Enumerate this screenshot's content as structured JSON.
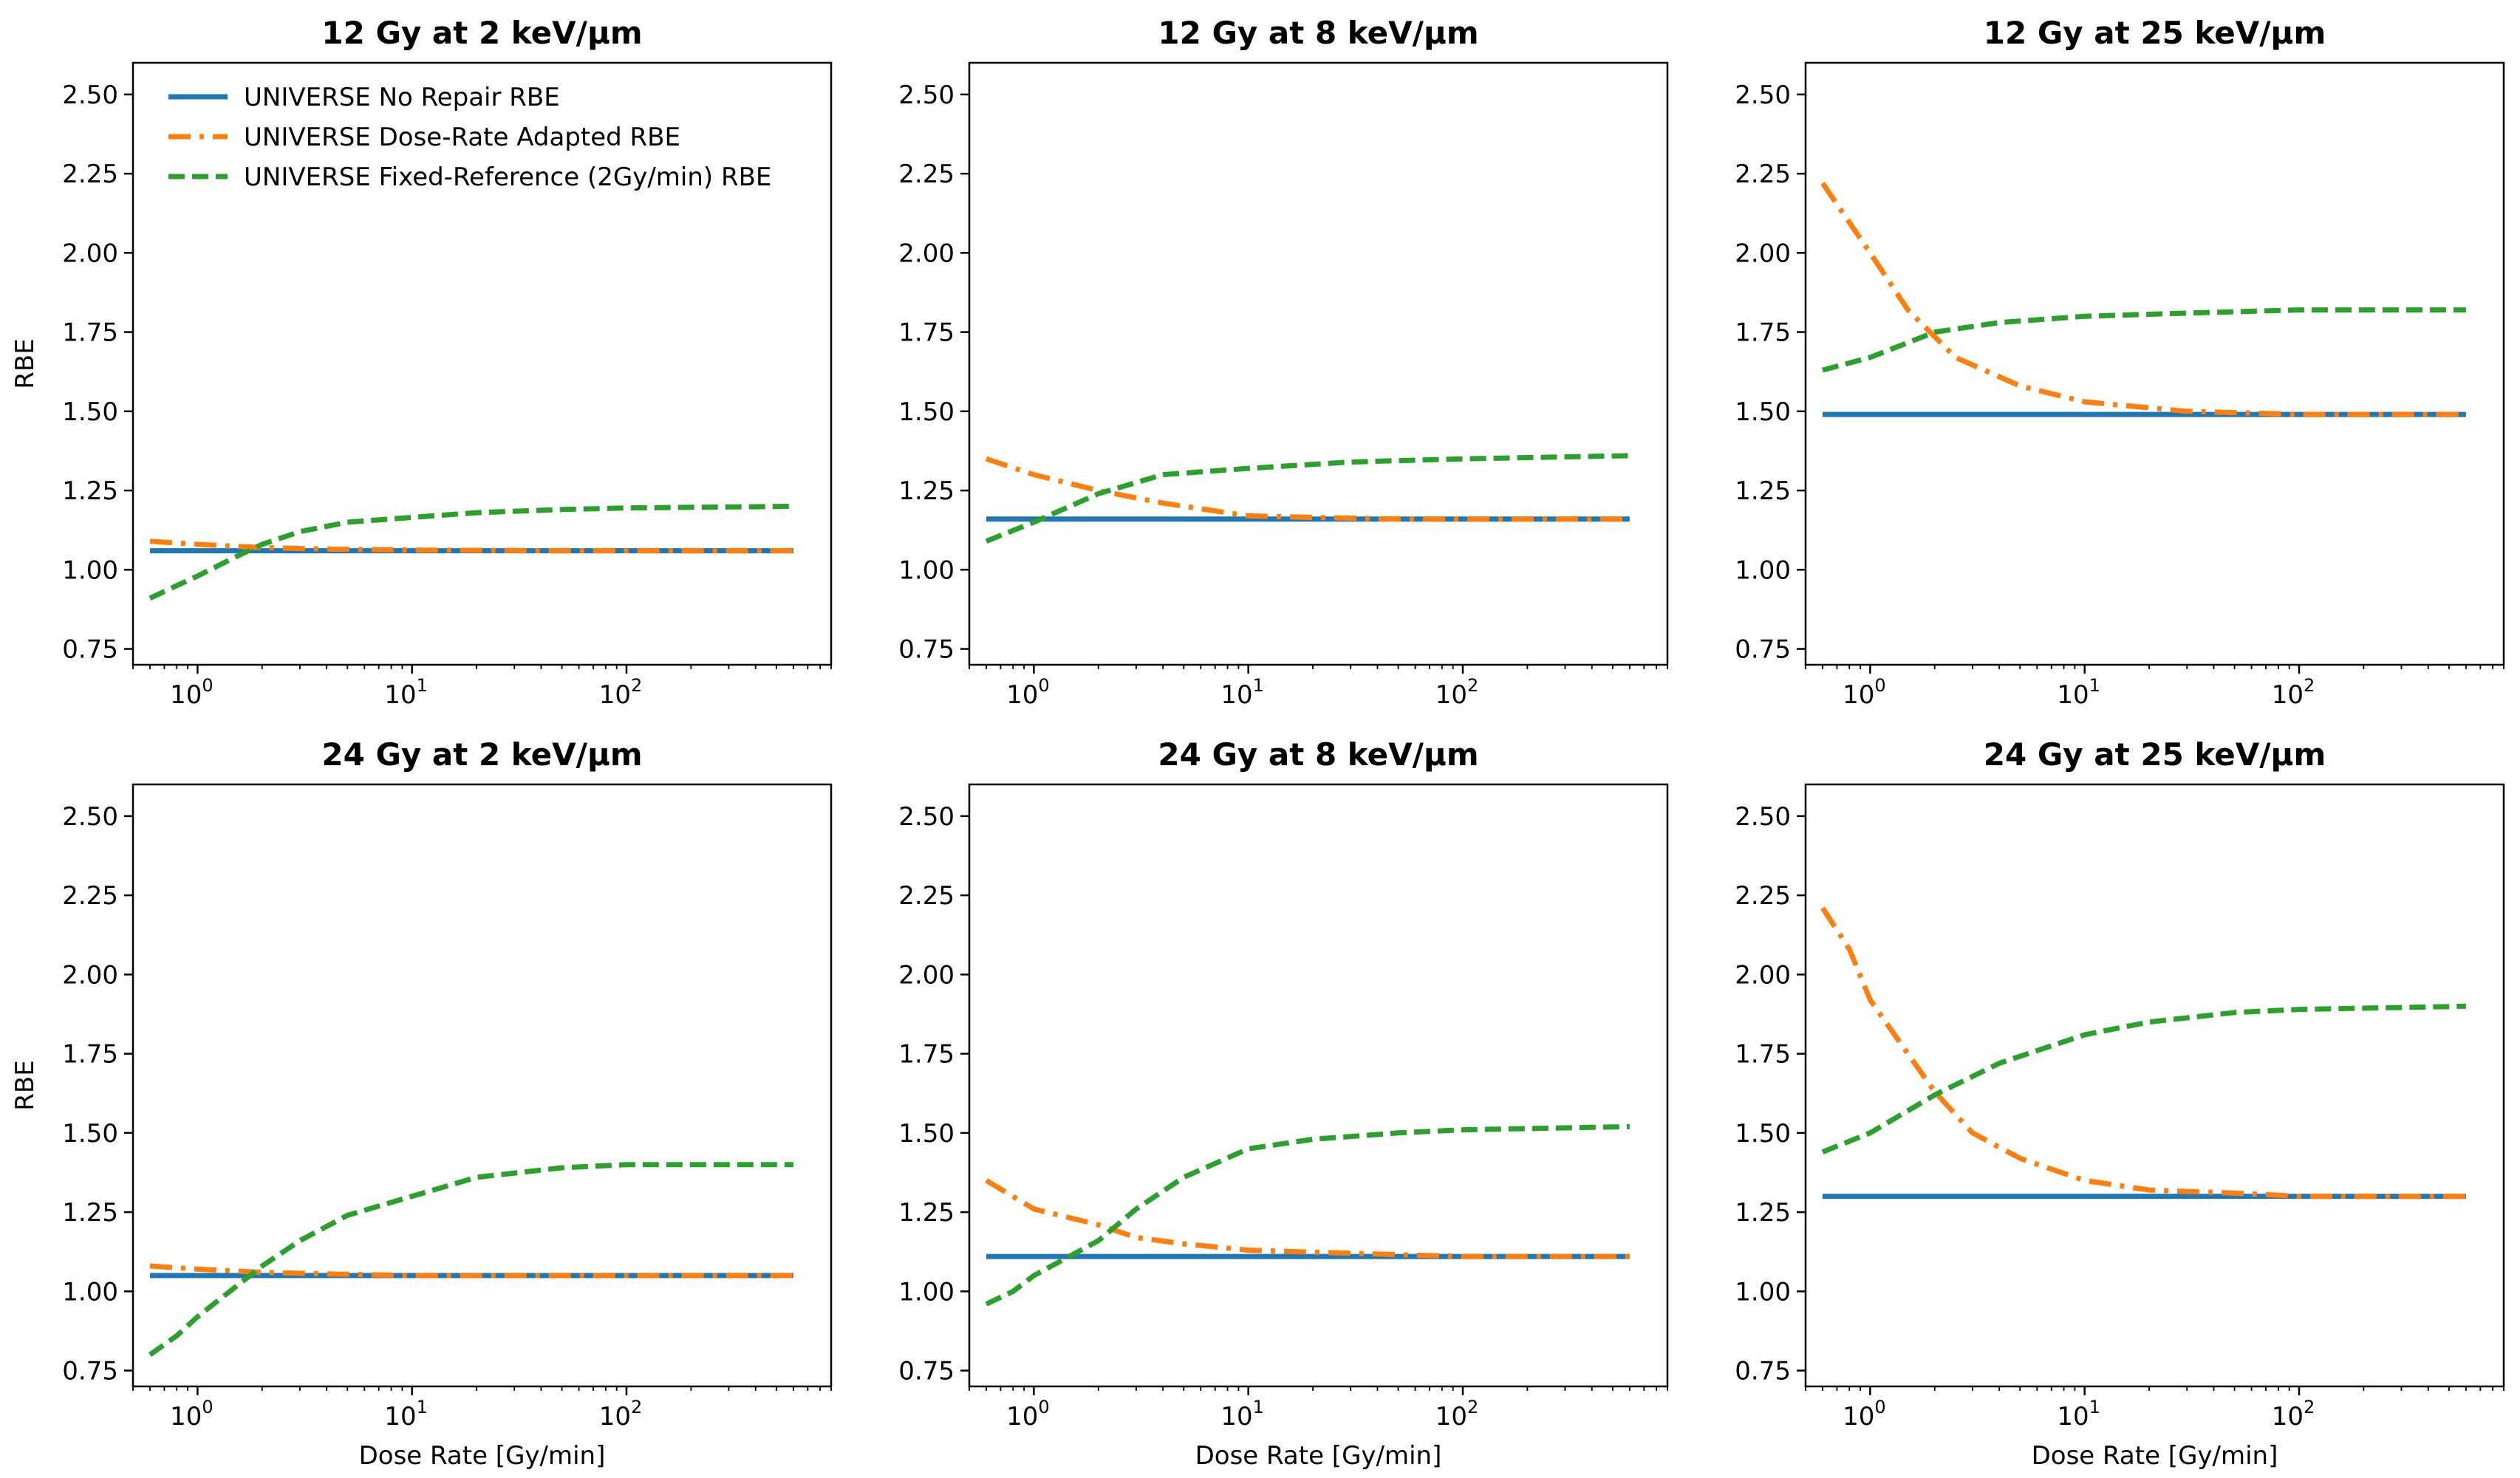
{
  "chart_data": [
    {
      "type": "line",
      "title": "12 Gy at 2 keV/μm",
      "xlabel": "",
      "ylabel": "RBE",
      "xscale": "log",
      "xlim": [
        0.5,
        900
      ],
      "ylim": [
        0.7,
        2.6
      ],
      "xticks": [
        {
          "value": 1,
          "base": "10",
          "exp": "0"
        },
        {
          "value": 10,
          "base": "10",
          "exp": "1"
        },
        {
          "value": 100,
          "base": "10",
          "exp": "2"
        }
      ],
      "yticks": [
        "0.75",
        "1.00",
        "1.25",
        "1.50",
        "1.75",
        "2.00",
        "2.25",
        "2.50"
      ],
      "legend": "top-left",
      "series": [
        {
          "name": "UNIVERSE No Repair RBE",
          "color": "#1f77b4",
          "dash": "solid",
          "x": [
            0.6,
            600
          ],
          "y": [
            1.06,
            1.06
          ]
        },
        {
          "name": "UNIVERSE Dose-Rate Adapted RBE",
          "color": "#ff7f0e",
          "dash": "dashdot",
          "x": [
            0.6,
            1,
            2,
            4,
            10,
            50,
            600
          ],
          "y": [
            1.09,
            1.08,
            1.07,
            1.065,
            1.062,
            1.06,
            1.06
          ]
        },
        {
          "name": "UNIVERSE Fixed-Reference (2Gy/min) RBE",
          "color": "#2ca02c",
          "dash": "dashed",
          "x": [
            0.6,
            0.8,
            1,
            1.5,
            2,
            3,
            5,
            10,
            20,
            50,
            100,
            600
          ],
          "y": [
            0.91,
            0.95,
            0.98,
            1.04,
            1.08,
            1.12,
            1.15,
            1.165,
            1.18,
            1.19,
            1.195,
            1.2
          ]
        }
      ]
    },
    {
      "type": "line",
      "title": "12 Gy at 8 keV/μm",
      "xlabel": "",
      "ylabel": "",
      "xscale": "log",
      "xlim": [
        0.5,
        900
      ],
      "ylim": [
        0.7,
        2.6
      ],
      "xticks": [
        {
          "value": 1,
          "base": "10",
          "exp": "0"
        },
        {
          "value": 10,
          "base": "10",
          "exp": "1"
        },
        {
          "value": 100,
          "base": "10",
          "exp": "2"
        }
      ],
      "yticks": [
        "0.75",
        "1.00",
        "1.25",
        "1.50",
        "1.75",
        "2.00",
        "2.25",
        "2.50"
      ],
      "series": [
        {
          "name": "UNIVERSE No Repair RBE",
          "color": "#1f77b4",
          "dash": "solid",
          "x": [
            0.6,
            600
          ],
          "y": [
            1.16,
            1.16
          ]
        },
        {
          "name": "UNIVERSE Dose-Rate Adapted RBE",
          "color": "#ff7f0e",
          "dash": "dashdot",
          "x": [
            0.6,
            1,
            2,
            4,
            10,
            20,
            50,
            600
          ],
          "y": [
            1.35,
            1.3,
            1.25,
            1.21,
            1.17,
            1.165,
            1.16,
            1.16
          ]
        },
        {
          "name": "UNIVERSE Fixed-Reference (2Gy/min) RBE",
          "color": "#2ca02c",
          "dash": "dashed",
          "x": [
            0.6,
            1,
            2,
            4,
            10,
            30,
            100,
            600
          ],
          "y": [
            1.09,
            1.15,
            1.24,
            1.3,
            1.32,
            1.34,
            1.35,
            1.36
          ]
        }
      ]
    },
    {
      "type": "line",
      "title": "12 Gy at 25 keV/μm",
      "xlabel": "",
      "ylabel": "",
      "xscale": "log",
      "xlim": [
        0.5,
        900
      ],
      "ylim": [
        0.7,
        2.6
      ],
      "xticks": [
        {
          "value": 1,
          "base": "10",
          "exp": "0"
        },
        {
          "value": 10,
          "base": "10",
          "exp": "1"
        },
        {
          "value": 100,
          "base": "10",
          "exp": "2"
        }
      ],
      "yticks": [
        "0.75",
        "1.00",
        "1.25",
        "1.50",
        "1.75",
        "2.00",
        "2.25",
        "2.50"
      ],
      "series": [
        {
          "name": "UNIVERSE No Repair RBE",
          "color": "#1f77b4",
          "dash": "solid",
          "x": [
            0.6,
            600
          ],
          "y": [
            1.49,
            1.49
          ]
        },
        {
          "name": "UNIVERSE Dose-Rate Adapted RBE",
          "color": "#ff7f0e",
          "dash": "dashdot",
          "x": [
            0.6,
            1,
            1.5,
            2.5,
            5,
            10,
            30,
            100,
            600
          ],
          "y": [
            2.22,
            2.0,
            1.82,
            1.67,
            1.58,
            1.53,
            1.5,
            1.49,
            1.49
          ]
        },
        {
          "name": "UNIVERSE Fixed-Reference (2Gy/min) RBE",
          "color": "#2ca02c",
          "dash": "dashed",
          "x": [
            0.6,
            1,
            2,
            4,
            10,
            30,
            100,
            600
          ],
          "y": [
            1.63,
            1.67,
            1.75,
            1.78,
            1.8,
            1.81,
            1.82,
            1.82
          ]
        }
      ]
    },
    {
      "type": "line",
      "title": "24 Gy at 2 keV/μm",
      "xlabel": "Dose Rate [Gy/min]",
      "ylabel": "RBE",
      "xscale": "log",
      "xlim": [
        0.5,
        900
      ],
      "ylim": [
        0.7,
        2.6
      ],
      "xticks": [
        {
          "value": 1,
          "base": "10",
          "exp": "0"
        },
        {
          "value": 10,
          "base": "10",
          "exp": "1"
        },
        {
          "value": 100,
          "base": "10",
          "exp": "2"
        }
      ],
      "yticks": [
        "0.75",
        "1.00",
        "1.25",
        "1.50",
        "1.75",
        "2.00",
        "2.25",
        "2.50"
      ],
      "series": [
        {
          "name": "UNIVERSE No Repair RBE",
          "color": "#1f77b4",
          "dash": "solid",
          "x": [
            0.6,
            600
          ],
          "y": [
            1.05,
            1.05
          ]
        },
        {
          "name": "UNIVERSE Dose-Rate Adapted RBE",
          "color": "#ff7f0e",
          "dash": "dashdot",
          "x": [
            0.6,
            1,
            2,
            4,
            10,
            50,
            600
          ],
          "y": [
            1.08,
            1.07,
            1.06,
            1.055,
            1.05,
            1.05,
            1.05
          ]
        },
        {
          "name": "UNIVERSE Fixed-Reference (2Gy/min) RBE",
          "color": "#2ca02c",
          "dash": "dashed",
          "x": [
            0.6,
            0.8,
            1,
            2,
            3,
            5,
            10,
            20,
            50,
            100,
            600
          ],
          "y": [
            0.8,
            0.86,
            0.92,
            1.08,
            1.16,
            1.24,
            1.3,
            1.36,
            1.39,
            1.4,
            1.4
          ]
        }
      ]
    },
    {
      "type": "line",
      "title": "24 Gy at 8 keV/μm",
      "xlabel": "Dose Rate [Gy/min]",
      "ylabel": "",
      "xscale": "log",
      "xlim": [
        0.5,
        900
      ],
      "ylim": [
        0.7,
        2.6
      ],
      "xticks": [
        {
          "value": 1,
          "base": "10",
          "exp": "0"
        },
        {
          "value": 10,
          "base": "10",
          "exp": "1"
        },
        {
          "value": 100,
          "base": "10",
          "exp": "2"
        }
      ],
      "yticks": [
        "0.75",
        "1.00",
        "1.25",
        "1.50",
        "1.75",
        "2.00",
        "2.25",
        "2.50"
      ],
      "series": [
        {
          "name": "UNIVERSE No Repair RBE",
          "color": "#1f77b4",
          "dash": "solid",
          "x": [
            0.6,
            600
          ],
          "y": [
            1.11,
            1.11
          ]
        },
        {
          "name": "UNIVERSE Dose-Rate Adapted RBE",
          "color": "#ff7f0e",
          "dash": "dashdot",
          "x": [
            0.6,
            1,
            2,
            3,
            5,
            10,
            30,
            100,
            600
          ],
          "y": [
            1.35,
            1.26,
            1.21,
            1.17,
            1.15,
            1.13,
            1.12,
            1.11,
            1.11
          ]
        },
        {
          "name": "UNIVERSE Fixed-Reference (2Gy/min) RBE",
          "color": "#2ca02c",
          "dash": "dashed",
          "x": [
            0.6,
            0.8,
            1,
            2,
            3,
            5,
            10,
            20,
            50,
            100,
            600
          ],
          "y": [
            0.96,
            1.0,
            1.05,
            1.16,
            1.26,
            1.36,
            1.45,
            1.48,
            1.5,
            1.51,
            1.52
          ]
        }
      ]
    },
    {
      "type": "line",
      "title": "24 Gy at 25 keV/μm",
      "xlabel": "Dose Rate [Gy/min]",
      "ylabel": "",
      "xscale": "log",
      "xlim": [
        0.5,
        900
      ],
      "ylim": [
        0.7,
        2.6
      ],
      "xticks": [
        {
          "value": 1,
          "base": "10",
          "exp": "0"
        },
        {
          "value": 10,
          "base": "10",
          "exp": "1"
        },
        {
          "value": 100,
          "base": "10",
          "exp": "2"
        }
      ],
      "yticks": [
        "0.75",
        "1.00",
        "1.25",
        "1.50",
        "1.75",
        "2.00",
        "2.25",
        "2.50"
      ],
      "series": [
        {
          "name": "UNIVERSE No Repair RBE",
          "color": "#1f77b4",
          "dash": "solid",
          "x": [
            0.6,
            600
          ],
          "y": [
            1.3,
            1.3
          ]
        },
        {
          "name": "UNIVERSE Dose-Rate Adapted RBE",
          "color": "#ff7f0e",
          "dash": "dashdot",
          "x": [
            0.6,
            0.8,
            1,
            1.5,
            2,
            3,
            5,
            10,
            20,
            50,
            100,
            600
          ],
          "y": [
            2.21,
            2.08,
            1.92,
            1.75,
            1.63,
            1.5,
            1.42,
            1.35,
            1.32,
            1.31,
            1.3,
            1.3
          ]
        },
        {
          "name": "UNIVERSE Fixed-Reference (2Gy/min) RBE",
          "color": "#2ca02c",
          "dash": "dashed",
          "x": [
            0.6,
            1,
            2,
            4,
            10,
            20,
            50,
            100,
            600
          ],
          "y": [
            1.44,
            1.5,
            1.62,
            1.72,
            1.81,
            1.85,
            1.88,
            1.89,
            1.9
          ]
        }
      ]
    }
  ]
}
